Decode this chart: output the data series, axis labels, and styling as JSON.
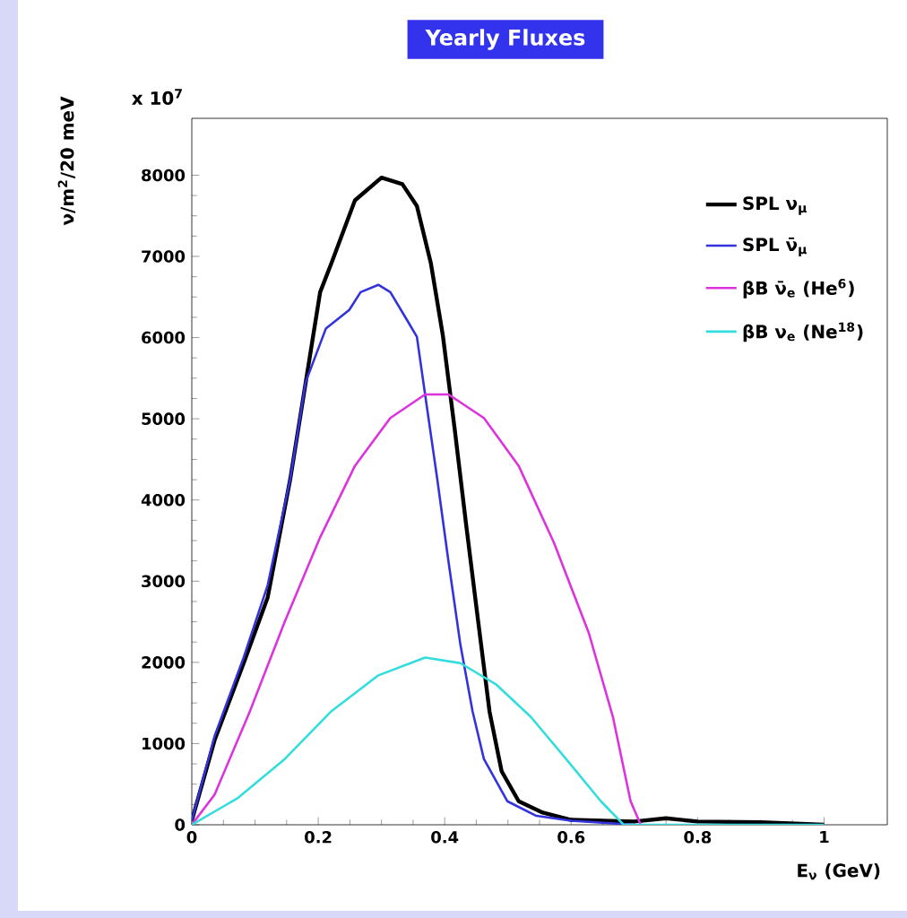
{
  "chart_data": {
    "type": "line",
    "title": "Yearly Fluxes",
    "xlabel": "E$_{ν}$ (GeV)",
    "ylabel": "ν/m$^{2}$/20 meV",
    "annotations": [
      "x 10$^{7}$"
    ],
    "xlim": [
      0,
      1.1
    ],
    "ylim": [
      0,
      8700
    ],
    "xticks": [
      0,
      0.2,
      0.4,
      0.6,
      0.8,
      1
    ],
    "yticks": [
      0,
      1000,
      2000,
      3000,
      4000,
      5000,
      6000,
      7000,
      8000
    ],
    "legend": "top right",
    "grid": false,
    "series": [
      {
        "name": "SPL ν$_{μ}$",
        "color": "#000000",
        "x": [
          0,
          0.036,
          0.082,
          0.12,
          0.156,
          0.203,
          0.221,
          0.258,
          0.3,
          0.333,
          0.356,
          0.378,
          0.397,
          0.416,
          0.434,
          0.453,
          0.471,
          0.49,
          0.517,
          0.555,
          0.6,
          0.7,
          0.75,
          0.8,
          0.9,
          1.0
        ],
        "values": [
          50,
          1040,
          1990,
          2800,
          4270,
          6560,
          6920,
          7690,
          7970,
          7890,
          7620,
          6920,
          6030,
          4860,
          3690,
          2500,
          1390,
          660,
          290,
          150,
          60,
          40,
          80,
          40,
          30,
          0
        ]
      },
      {
        "name": "SPL ν̄$_{μ}$",
        "color": "#3333dd",
        "x": [
          0,
          0.036,
          0.082,
          0.12,
          0.156,
          0.18,
          0.212,
          0.249,
          0.267,
          0.295,
          0.314,
          0.337,
          0.356,
          0.369,
          0.388,
          0.406,
          0.425,
          0.444,
          0.462,
          0.499,
          0.545,
          0.6,
          0.7
        ],
        "values": [
          50,
          1090,
          2060,
          2950,
          4270,
          5450,
          6110,
          6340,
          6560,
          6650,
          6560,
          6260,
          6010,
          5300,
          4270,
          3240,
          2210,
          1400,
          810,
          290,
          110,
          50,
          0
        ]
      },
      {
        "name": "βB ν̄$_{e}$ (He$^{6}$)",
        "color": "#dd33dd",
        "x": [
          0,
          0.036,
          0.092,
          0.147,
          0.203,
          0.258,
          0.314,
          0.369,
          0.406,
          0.462,
          0.517,
          0.573,
          0.628,
          0.666,
          0.694,
          0.71
        ],
        "values": [
          0,
          370,
          1400,
          2500,
          3540,
          4420,
          5010,
          5300,
          5300,
          5010,
          4420,
          3470,
          2360,
          1330,
          290,
          0
        ]
      },
      {
        "name": "βB ν$_{e}$ (Ne$^{18}$)",
        "color": "#33dddd",
        "x": [
          0,
          0.073,
          0.147,
          0.221,
          0.295,
          0.369,
          0.425,
          0.481,
          0.536,
          0.592,
          0.647,
          0.683,
          1.0
        ],
        "values": [
          0,
          330,
          810,
          1400,
          1840,
          2060,
          1990,
          1730,
          1330,
          810,
          290,
          0,
          0
        ]
      }
    ]
  }
}
